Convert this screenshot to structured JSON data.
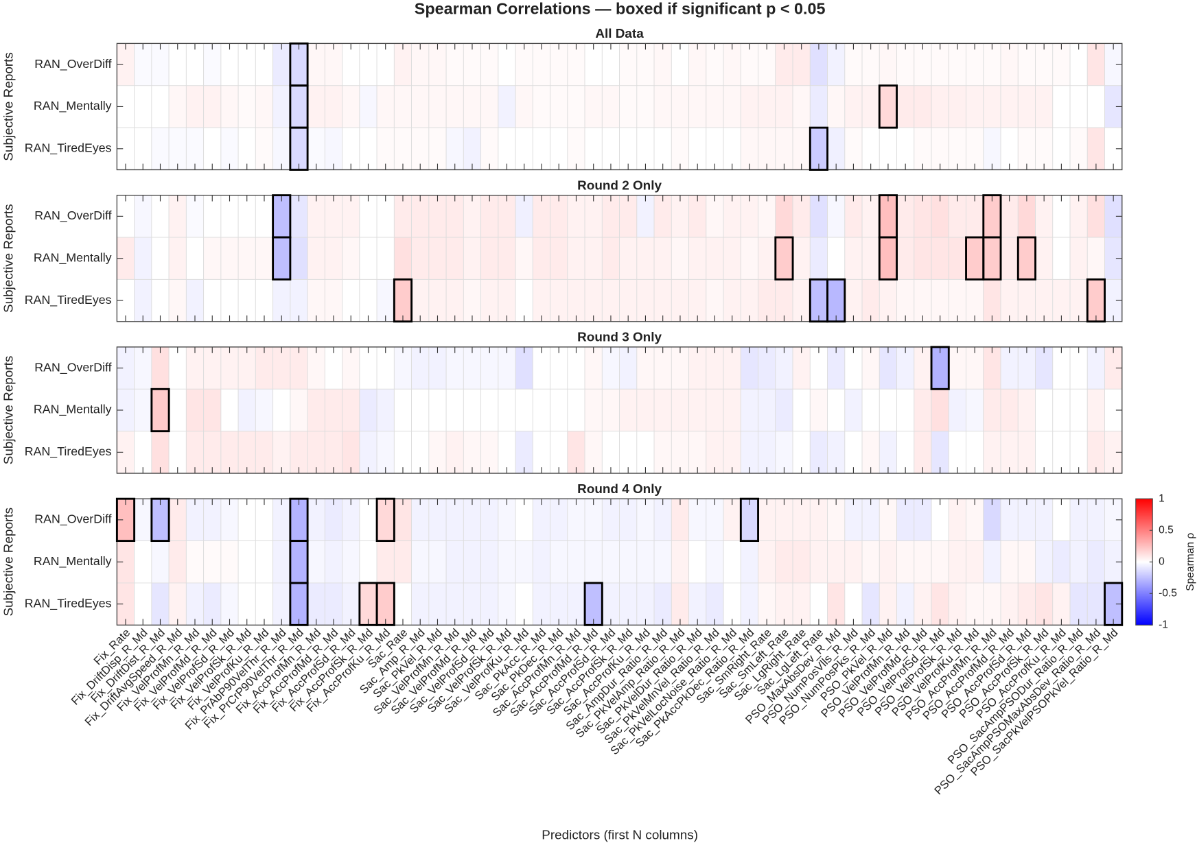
{
  "chart_data": {
    "type": "heatmap",
    "title": "Spearman Correlations — boxed if significant p < 0.05",
    "xlabel": "Predictors (first N columns)",
    "ylabel": "Subjective Reports",
    "colorbar_label": "Spearman ρ",
    "clim": [
      -1,
      1
    ],
    "cticks": [
      -1,
      -0.5,
      0,
      0.5,
      1
    ],
    "colormap": [
      "#0000ff",
      "#ffffff",
      "#ff0000"
    ],
    "rows": [
      "RAN_OverDiff",
      "RAN_Mentally",
      "RAN_TiredEyes"
    ],
    "categories": [
      "Fix_Rate",
      "Fix_DriftDisp_R_Md",
      "Fix_DriftDist_R_Md",
      "Fix_DriftAvgSpeed_R_Md",
      "Fix_VelProfMn_R_Md",
      "Fix_VelProfMd_R_Md",
      "Fix_VelProfSd_R_Md",
      "Fix_VelProfSk_R_Md",
      "Fix_VelProfKu_R_Md",
      "Fix_PrAbP90VelThr_R_Md",
      "Fix_PrCrP90VelThr_R_Md",
      "Fix_AccProfMn_R_Md",
      "Fix_AccProfMd_R_Md",
      "Fix_AccProfSd_R_Md",
      "Fix_AccProfSk_R_Md",
      "Fix_AccProfKu_R_Md",
      "Sac_Rate",
      "Sac_Amp_R_Md",
      "Sac_PkVel_R_Md",
      "Sac_VelProfMn_R_Md",
      "Sac_VelProfMd_R_Md",
      "Sac_VelProfSd_R_Md",
      "Sac_VelProfSk_R_Md",
      "Sac_VelProfKu_R_Md",
      "Sac_PkAcc_R_Md",
      "Sac_PkDec_R_Md",
      "Sac_AccProfMn_R_Md",
      "Sac_AccProfMd_R_Md",
      "Sac_AccProfSd_R_Md",
      "Sac_AccProfSk_R_Md",
      "Sac_AccProfKu_R_Md",
      "Sac_AmpDur_Ratio_R_Md",
      "Sac_PkVelAmp_Ratio_R_Md",
      "Sac_PkVelDur_Ratio_R_Md",
      "Sac_PkVelMnVel_Ratio_R_Md",
      "Sac_PkVelLocNoise_Ratio_R_Md",
      "Sac_PkAccPkDec_Ratio_R_Md",
      "Sac_SmRight_Rate",
      "Sac_SmLeft_Rate",
      "Sac_LgRight_Rate",
      "Sac_LgLeft_Rate",
      "PSO_MaxAbsDev_R_Md",
      "PSO_NumPosVlls_R_Md",
      "PSO_NumPosPks_R_Md",
      "PSO_PkVel_R_Md",
      "PSO_VelProfMn_R_Md",
      "PSO_VelProfMd_R_Md",
      "PSO_VelProfSd_R_Md",
      "PSO_VelProfSk_R_Md",
      "PSO_VelProfKu_R_Md",
      "PSO_AccProfMn_R_Md",
      "PSO_AccProfMd_R_Md",
      "PSO_AccProfSd_R_Md",
      "PSO_AccProfSk_R_Md",
      "PSO_AccProfKu_R_Md",
      "PSO_SacAmpPSODur_Ratio_R_Md",
      "PSO_SacAmpPSOMaxAbsDev_Ratio_R_Md",
      "PSO_SacPkVelPSOPkVel_Ratio_R_Md"
    ],
    "panels": [
      {
        "title": "All Data",
        "values": [
          [
            0.05,
            -0.02,
            -0.02,
            0,
            0,
            -0.02,
            0,
            0,
            0,
            -0.08,
            -0.15,
            0.03,
            0.03,
            0,
            0,
            0,
            0.05,
            0.03,
            0.03,
            0.02,
            0.02,
            0.02,
            0,
            0.02,
            0.02,
            0.02,
            0.02,
            0,
            0,
            0.02,
            0.02,
            0.03,
            0,
            0.03,
            0.02,
            0.03,
            0.02,
            0.02,
            0.08,
            0.08,
            -0.12,
            -0.05,
            0.02,
            0.02,
            0.03,
            0.02,
            0.02,
            0.02,
            0.02,
            0.02,
            0.02,
            0.03,
            0.02,
            0.02,
            0.02,
            0,
            0.1,
            -0.03
          ],
          [
            0,
            0,
            0,
            0.03,
            0.05,
            0.05,
            0.03,
            0.02,
            0.03,
            -0.05,
            -0.15,
            0.05,
            0.05,
            0.03,
            -0.03,
            0.03,
            0.03,
            0.03,
            0.03,
            0.03,
            0.03,
            0.03,
            -0.05,
            0.03,
            0.02,
            0.02,
            0.02,
            0.03,
            0.03,
            0.02,
            0.02,
            0.03,
            0.03,
            0.03,
            0.03,
            0.03,
            0.05,
            0.05,
            0.05,
            0.03,
            -0.08,
            0.03,
            0.05,
            0.05,
            0.15,
            0.08,
            0.08,
            0.06,
            0.06,
            0.05,
            0.05,
            0.05,
            0.05,
            0.05,
            0,
            0,
            0,
            -0.1
          ],
          [
            0,
            0,
            -0.02,
            -0.02,
            -0.02,
            0,
            -0.02,
            0,
            0.02,
            -0.03,
            -0.15,
            -0.02,
            -0.03,
            0,
            0,
            0.02,
            0.02,
            0.02,
            0.02,
            -0.03,
            -0.05,
            0.02,
            0,
            0,
            0,
            0,
            0.02,
            0,
            0,
            0,
            0,
            0,
            0.02,
            0,
            0,
            0,
            0.03,
            0.03,
            0.03,
            0.03,
            -0.2,
            -0.06,
            0.02,
            0,
            0,
            0,
            0.02,
            0.02,
            0.02,
            0.02,
            -0.03,
            0,
            0.02,
            0.02,
            0,
            0.02,
            0.1,
            0
          ]
        ],
        "significant": [
          [
            0,
            10
          ],
          [
            1,
            10
          ],
          [
            2,
            10
          ],
          [
            1,
            44
          ],
          [
            2,
            40
          ]
        ]
      },
      {
        "title": "Round 2 Only",
        "values": [
          [
            0,
            -0.03,
            0,
            0.05,
            -0.02,
            0,
            0,
            0,
            0,
            -0.25,
            -0.1,
            0.05,
            0.05,
            0.05,
            0,
            0,
            0.08,
            0.08,
            0.08,
            0.08,
            0.05,
            0.08,
            0.08,
            -0.06,
            0.08,
            0.08,
            0.05,
            0.05,
            0.08,
            0.08,
            -0.05,
            0.08,
            0.05,
            0.08,
            0.03,
            0.05,
            0.05,
            0.03,
            0.15,
            0.08,
            -0.12,
            -0.03,
            0.08,
            0.05,
            0.25,
            0.08,
            0.1,
            0.12,
            0.08,
            0.08,
            0.2,
            0.08,
            0.15,
            0.05,
            0,
            0.05,
            0.12,
            -0.12
          ],
          [
            0.08,
            -0.05,
            0,
            0.05,
            0,
            0.03,
            0.03,
            0.03,
            0.03,
            -0.25,
            -0.12,
            0.05,
            0.05,
            0.03,
            0,
            0,
            0.12,
            0.08,
            0.08,
            0.08,
            0.05,
            0.08,
            0.08,
            0.03,
            0.08,
            0.08,
            0.05,
            0.05,
            0.08,
            0.05,
            0.05,
            0.05,
            0.03,
            0.05,
            0.05,
            0.05,
            0.03,
            0.05,
            0.2,
            0.05,
            -0.08,
            0,
            0.05,
            0.05,
            0.25,
            0.08,
            0.1,
            0.1,
            0.1,
            0.2,
            0.2,
            0.08,
            0.2,
            0.05,
            0,
            0.05,
            0.03,
            -0.1
          ],
          [
            0,
            -0.05,
            0,
            0.03,
            -0.05,
            0,
            0,
            0,
            0,
            -0.05,
            -0.05,
            0.03,
            0.03,
            0,
            0,
            -0.03,
            0.2,
            0.05,
            0.05,
            0.05,
            0.03,
            0.05,
            0.05,
            0,
            0.05,
            0.05,
            0.05,
            0.05,
            0.05,
            0.05,
            0.05,
            0.05,
            0.05,
            0.05,
            0.03,
            0.05,
            0.05,
            0.08,
            0.08,
            0.05,
            -0.25,
            -0.28,
            0.05,
            0.08,
            0.05,
            0.03,
            0.03,
            0.03,
            0.03,
            0.03,
            0.1,
            0.05,
            0.05,
            0.05,
            0.05,
            0.05,
            0.2,
            -0.05
          ]
        ],
        "significant": [
          [
            0,
            9
          ],
          [
            1,
            9
          ],
          [
            0,
            44
          ],
          [
            0,
            50
          ],
          [
            1,
            38
          ],
          [
            1,
            44
          ],
          [
            1,
            49
          ],
          [
            1,
            50
          ],
          [
            1,
            52
          ],
          [
            2,
            16
          ],
          [
            2,
            40
          ],
          [
            2,
            41
          ],
          [
            2,
            56
          ]
        ]
      },
      {
        "title": "Round 3 Only",
        "values": [
          [
            -0.05,
            -0.03,
            0.12,
            0,
            0.05,
            0.05,
            0.05,
            0.05,
            0.08,
            0.08,
            0.08,
            0.03,
            0,
            0.03,
            0,
            0,
            -0.03,
            -0.05,
            -0.05,
            -0.03,
            -0.03,
            -0.03,
            -0.03,
            -0.12,
            0,
            0,
            0,
            0.03,
            -0.03,
            -0.05,
            0.03,
            0.03,
            0.03,
            0.05,
            0.05,
            0.05,
            -0.1,
            -0.08,
            -0.05,
            0.05,
            0,
            -0.08,
            0,
            0.03,
            -0.1,
            -0.05,
            0.05,
            -0.3,
            0.03,
            0.03,
            0.1,
            -0.05,
            -0.05,
            -0.1,
            0,
            0,
            -0.05,
            0.08
          ],
          [
            -0.05,
            -0.03,
            0.2,
            0,
            0.1,
            0.1,
            0,
            -0.05,
            -0.03,
            0,
            0.03,
            0.08,
            0.08,
            0.08,
            -0.08,
            -0.05,
            0,
            0,
            0,
            0,
            0,
            0,
            0,
            0,
            0,
            0,
            0,
            0.03,
            0.03,
            0.05,
            0.05,
            0.05,
            0.05,
            0.05,
            0.05,
            0.05,
            -0.05,
            -0.05,
            -0.08,
            0,
            0.03,
            0,
            -0.05,
            0,
            0,
            0,
            0.08,
            0.12,
            -0.05,
            -0.03,
            0.08,
            0.08,
            0.05,
            0,
            0,
            0,
            0.05,
            0
          ],
          [
            0.05,
            0,
            0.12,
            0,
            0.08,
            0.08,
            0.08,
            0.08,
            0.08,
            0.05,
            0.08,
            0.08,
            0.08,
            0.1,
            -0.05,
            -0.03,
            0,
            0,
            0.03,
            0.05,
            0.03,
            0.03,
            0,
            -0.08,
            0,
            0,
            0.1,
            0.03,
            0,
            0,
            0,
            0.03,
            0.03,
            0.03,
            0.05,
            0.05,
            -0.05,
            -0.05,
            -0.03,
            0,
            -0.08,
            -0.05,
            0,
            0.03,
            -0.05,
            0,
            0.08,
            -0.1,
            0,
            0,
            0.05,
            0.05,
            0.05,
            0,
            0,
            0,
            0.08,
            0.05
          ]
        ],
        "significant": [
          [
            0,
            47
          ],
          [
            1,
            2
          ]
        ]
      },
      {
        "title": "Round 4 Only",
        "values": [
          [
            0.25,
            -0.03,
            -0.25,
            0.08,
            -0.05,
            -0.05,
            -0.03,
            0,
            0,
            -0.05,
            -0.3,
            -0.05,
            -0.08,
            -0.05,
            0,
            0.15,
            0.1,
            -0.05,
            -0.05,
            -0.05,
            -0.05,
            -0.05,
            -0.03,
            0,
            -0.05,
            -0.05,
            -0.03,
            -0.03,
            -0.05,
            -0.05,
            -0.03,
            -0.05,
            0.08,
            -0.03,
            -0.03,
            0.05,
            -0.15,
            0.05,
            0.05,
            0.05,
            0.05,
            0.03,
            -0.05,
            -0.05,
            0.03,
            -0.08,
            -0.08,
            0,
            0.05,
            0.03,
            -0.15,
            -0.05,
            -0.05,
            -0.05,
            0,
            -0.05,
            -0.05,
            -0.03
          ],
          [
            0.1,
            0,
            -0.03,
            0.08,
            0.02,
            0.02,
            0.02,
            0,
            0,
            -0.05,
            -0.3,
            -0.03,
            -0.05,
            -0.03,
            0,
            0.08,
            0.08,
            -0.03,
            -0.03,
            -0.05,
            -0.05,
            -0.05,
            -0.03,
            -0.03,
            -0.05,
            -0.03,
            -0.03,
            -0.03,
            -0.03,
            -0.03,
            -0.03,
            -0.03,
            0.05,
            0,
            -0.03,
            0,
            -0.05,
            0.05,
            0.08,
            0.08,
            0.05,
            0.05,
            0.05,
            0.03,
            0.05,
            0.03,
            0.03,
            0.03,
            0.05,
            0.05,
            -0.05,
            0.03,
            0.03,
            -0.05,
            -0.08,
            -0.05,
            -0.08,
            -0.05
          ],
          [
            0.1,
            0,
            -0.1,
            0.05,
            -0.05,
            -0.08,
            -0.03,
            0,
            0,
            -0.05,
            -0.3,
            -0.08,
            -0.08,
            -0.05,
            0.15,
            0.2,
            0,
            -0.05,
            -0.05,
            -0.05,
            -0.05,
            -0.05,
            -0.03,
            0,
            -0.05,
            -0.05,
            -0.05,
            -0.25,
            -0.05,
            -0.05,
            -0.05,
            -0.08,
            0.08,
            -0.05,
            -0.08,
            0,
            -0.05,
            0.03,
            0.05,
            0.05,
            0,
            0.1,
            0,
            -0.1,
            0.05,
            -0.05,
            0.05,
            0.1,
            0.05,
            0.03,
            0.03,
            0.05,
            0.08,
            0.1,
            0.05,
            -0.1,
            -0.1,
            -0.25
          ]
        ],
        "significant": [
          [
            0,
            0
          ],
          [
            0,
            2
          ],
          [
            0,
            10
          ],
          [
            0,
            15
          ],
          [
            0,
            36
          ],
          [
            1,
            10
          ],
          [
            2,
            10
          ],
          [
            2,
            14
          ],
          [
            2,
            15
          ],
          [
            2,
            27
          ],
          [
            2,
            57
          ]
        ]
      }
    ]
  }
}
